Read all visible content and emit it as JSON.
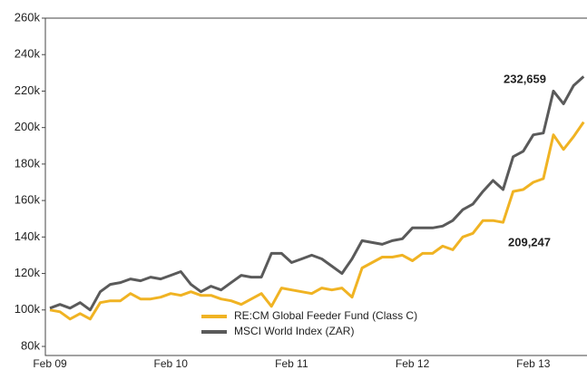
{
  "chart_data": {
    "type": "line",
    "categories": [
      "Feb 09",
      null,
      null,
      null,
      null,
      null,
      null,
      null,
      null,
      null,
      null,
      null,
      "Feb 10",
      null,
      null,
      null,
      null,
      null,
      null,
      null,
      null,
      null,
      null,
      null,
      "Feb 11",
      null,
      null,
      null,
      null,
      null,
      null,
      null,
      null,
      null,
      null,
      null,
      "Feb 12",
      null,
      null,
      null,
      null,
      null,
      null,
      null,
      null,
      null,
      null,
      null,
      "Feb 13",
      null,
      null,
      null,
      null,
      null
    ],
    "series": [
      {
        "name": "RE:CM Global Feeder Fund (Class C)",
        "color": "#f0b323",
        "values": [
          100,
          99,
          95,
          98,
          95,
          104,
          105,
          105,
          109,
          106,
          106,
          107,
          109,
          108,
          110,
          108,
          108,
          106,
          105,
          103,
          106,
          109,
          102,
          112,
          111,
          110,
          109,
          112,
          111,
          112,
          107,
          123,
          126,
          129,
          129,
          130,
          127,
          131,
          131,
          135,
          133,
          140,
          142,
          149,
          149,
          148,
          165,
          166,
          170,
          172,
          196,
          188,
          195,
          203
        ]
      },
      {
        "name": "MSCI World Index (ZAR)",
        "color": "#5a5a5a",
        "values": [
          101,
          103,
          101,
          104,
          100,
          110,
          114,
          115,
          117,
          116,
          118,
          117,
          119,
          121,
          114,
          110,
          113,
          111,
          115,
          119,
          118,
          118,
          131,
          131,
          126,
          128,
          130,
          128,
          124,
          120,
          128,
          138,
          137,
          136,
          138,
          139,
          145,
          145,
          145,
          146,
          149,
          155,
          158,
          165,
          171,
          166,
          184,
          187,
          196,
          197,
          220,
          213,
          223,
          228
        ]
      }
    ],
    "annotations": [
      {
        "text": "232,659",
        "color": "#5a5a5a"
      },
      {
        "text": "209,247",
        "color": "#f0b323"
      }
    ],
    "ylim": [
      80,
      260
    ],
    "yticks": [
      {
        "value": 80,
        "label": "80k"
      },
      {
        "value": 100,
        "label": "100k"
      },
      {
        "value": 120,
        "label": "120k"
      },
      {
        "value": 140,
        "label": "140k"
      },
      {
        "value": 160,
        "label": "160k"
      },
      {
        "value": 180,
        "label": "180k"
      },
      {
        "value": 200,
        "label": "200k"
      },
      {
        "value": 220,
        "label": "220k"
      },
      {
        "value": 240,
        "label": "240k"
      },
      {
        "value": 260,
        "label": "260k"
      }
    ]
  }
}
